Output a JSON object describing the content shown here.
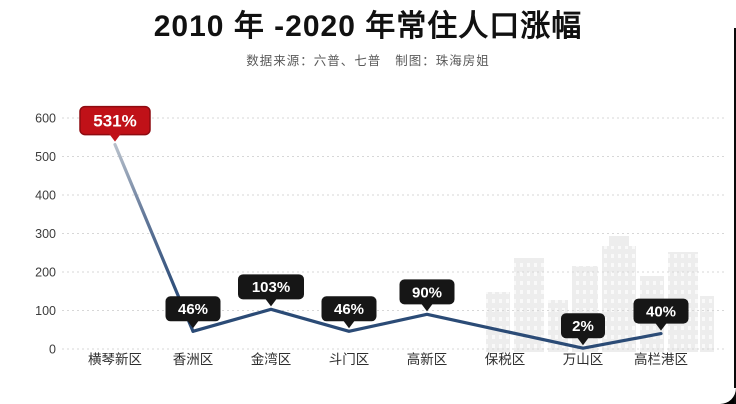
{
  "header": {
    "title": "2010 年 -2020 年常住人口涨幅",
    "source": "数据来源：六普、七普",
    "credit": "制图：珠海房姐"
  },
  "chart_data": {
    "type": "line",
    "title": "2010 年 -2020 年常住人口涨幅",
    "categories": [
      "横琴新区",
      "香洲区",
      "金湾区",
      "斗门区",
      "高新区",
      "保税区",
      "万山区",
      "高栏港区"
    ],
    "values": [
      531,
      46,
      103,
      46,
      90,
      null,
      2,
      40
    ],
    "value_labels": [
      "531%",
      "46%",
      "103%",
      "46%",
      "90%",
      "",
      "2%",
      "40%"
    ],
    "highlight_index": 0,
    "ylim": [
      0,
      600
    ],
    "yticks": [
      0,
      100,
      200,
      300,
      400,
      500,
      600
    ],
    "grid": "dashed-horizontal",
    "legend": "none",
    "colors": {
      "line": "#2b4b76",
      "line_fade_top": "#b7c0cb",
      "highlight_badge": "#c01118",
      "highlight_badge_border": "#8e0a10",
      "badge": "#161616",
      "badge_text": "#ffffff",
      "grid": "#d7d7d7",
      "tick_text": "#3c3c3c",
      "category_text": "#2e2e2e",
      "watermark": "#ededed"
    }
  }
}
